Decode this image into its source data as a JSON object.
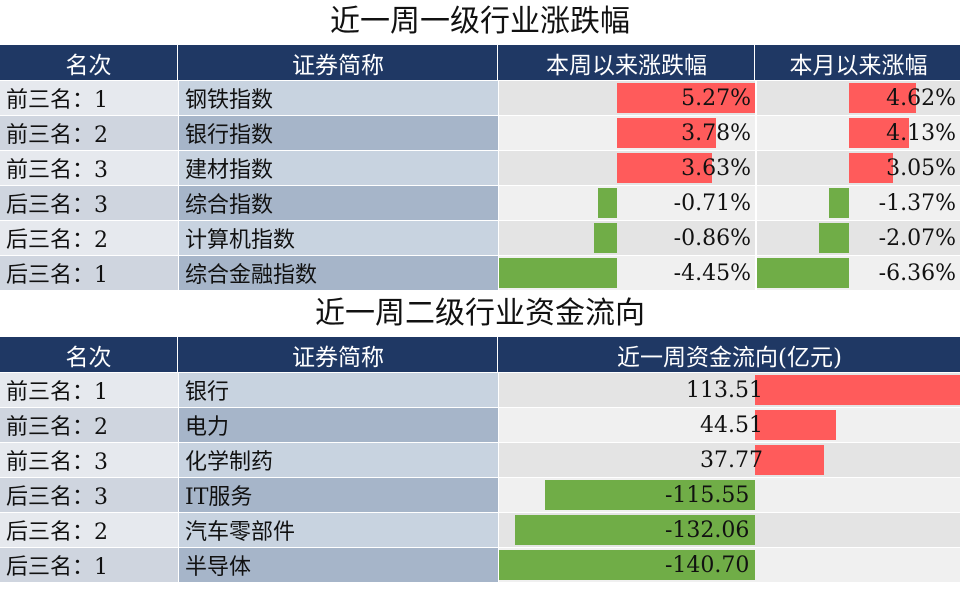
{
  "table1": {
    "title": "近一周一级行业涨跌幅",
    "headers": [
      "名次",
      "证券简称",
      "本周以来涨跌幅",
      "本月以来涨幅"
    ],
    "rows": [
      {
        "rank": "前三名：1",
        "name": "钢铁指数",
        "week": "5.27%",
        "month": "4.62%"
      },
      {
        "rank": "前三名：2",
        "name": "银行指数",
        "week": "3.78%",
        "month": "4.13%"
      },
      {
        "rank": "前三名：3",
        "name": "建材指数",
        "week": "3.63%",
        "month": "3.05%"
      },
      {
        "rank": "后三名：3",
        "name": "综合指数",
        "week": "-0.71%",
        "month": "-1.37%"
      },
      {
        "rank": "后三名：2",
        "name": "计算机指数",
        "week": "-0.86%",
        "month": "-2.07%"
      },
      {
        "rank": "后三名：1",
        "name": "综合金融指数",
        "week": "-4.45%",
        "month": "-6.36%"
      }
    ]
  },
  "table2": {
    "title": "近一周二级行业资金流向",
    "headers": [
      "名次",
      "证券简称",
      "近一周资金流向(亿元)"
    ],
    "rows": [
      {
        "rank": "前三名：1",
        "name": "银行",
        "flow": "113.51"
      },
      {
        "rank": "前三名：2",
        "name": "电力",
        "flow": "44.51"
      },
      {
        "rank": "前三名：3",
        "name": "化学制药",
        "flow": "37.77"
      },
      {
        "rank": "后三名：3",
        "name": "IT服务",
        "flow": "-115.55"
      },
      {
        "rank": "后三名：2",
        "name": "汽车零部件",
        "flow": "-132.06"
      },
      {
        "rank": "后三名：1",
        "name": "半导体",
        "flow": "-140.70"
      }
    ]
  },
  "chart_data": [
    {
      "type": "bar",
      "title": "近一周一级行业涨跌幅",
      "categories": [
        "钢铁指数",
        "银行指数",
        "建材指数",
        "综合指数",
        "计算机指数",
        "综合金融指数"
      ],
      "series": [
        {
          "name": "本周以来涨跌幅",
          "values": [
            5.27,
            3.78,
            3.63,
            -0.71,
            -0.86,
            -4.45
          ]
        },
        {
          "name": "本月以来涨幅",
          "values": [
            4.62,
            4.13,
            3.05,
            -1.37,
            -2.07,
            -6.36
          ]
        }
      ]
    },
    {
      "type": "bar",
      "title": "近一周二级行业资金流向",
      "categories": [
        "银行",
        "电力",
        "化学制药",
        "IT服务",
        "汽车零部件",
        "半导体"
      ],
      "series": [
        {
          "name": "近一周资金流向(亿元)",
          "values": [
            113.51,
            44.51,
            37.77,
            -115.55,
            -132.06,
            -140.7
          ]
        }
      ]
    }
  ],
  "colors": {
    "positive": "#ff5b5b",
    "negative": "#70ad47",
    "header": "#1f3864"
  }
}
